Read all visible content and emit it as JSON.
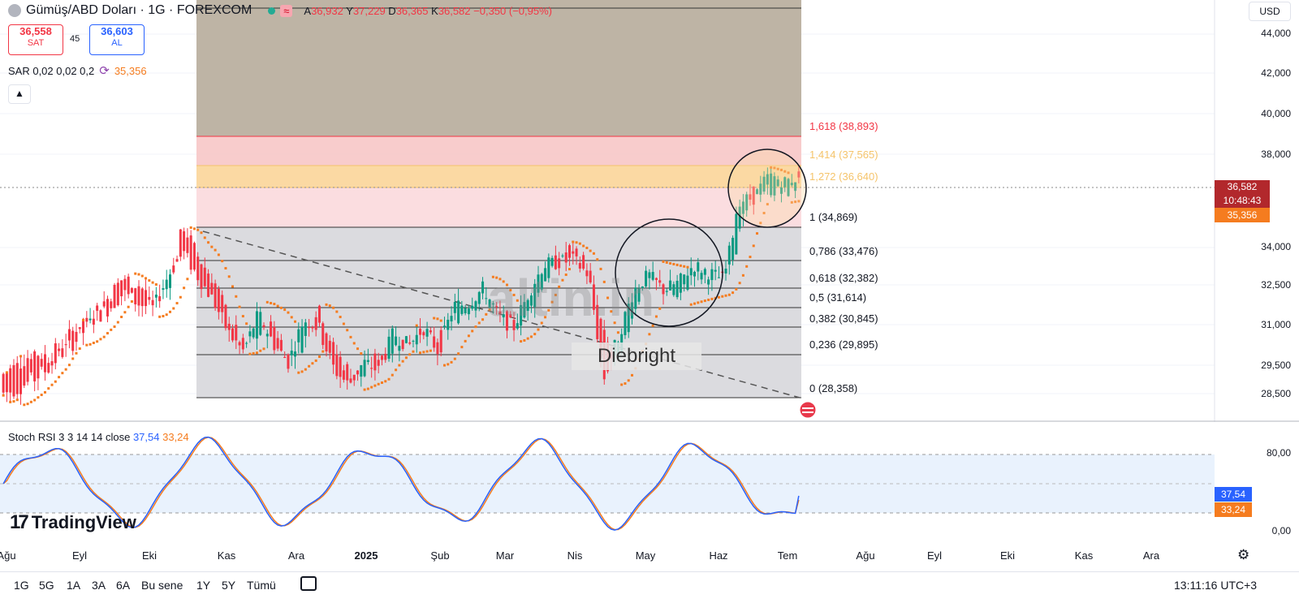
{
  "header": {
    "symbol_title": "Gümüş/ABD Doları · 1G · FOREXCOM",
    "wave_badge": "≈",
    "ohlc": {
      "o_label": "A",
      "o": "36,932",
      "h_label": "Y",
      "h": "37,229",
      "l_label": "D",
      "l": "36,365",
      "c_label": "K",
      "c": "36,582",
      "change": "−0,350 (−0,95%)"
    }
  },
  "trade": {
    "sell_price": "36,558",
    "sell_label": "SAT",
    "spread": "45",
    "buy_price": "36,603",
    "buy_label": "AL"
  },
  "sar": {
    "label": "SAR 0,02 0,02 0,2",
    "value": "35,356"
  },
  "currency": "USD",
  "y_axis": [
    "44,000",
    "42,000",
    "40,000",
    "38,000",
    "34,000",
    "32,500",
    "31,000",
    "29,500",
    "28,500"
  ],
  "fib_levels": [
    {
      "label": "1,618 (38,893)",
      "color": "#f23645"
    },
    {
      "label": "1,414 (37,565)",
      "color": "#f5c46b"
    },
    {
      "label": "1,272 (36,640)",
      "color": "#f5c46b"
    },
    {
      "label": "1 (34,869)",
      "color": "#131722"
    },
    {
      "label": "0,786 (33,476)",
      "color": "#131722"
    },
    {
      "label": "0,618 (32,382)",
      "color": "#131722"
    },
    {
      "label": "0,5 (31,614)",
      "color": "#131722"
    },
    {
      "label": "0,382 (30,845)",
      "color": "#131722"
    },
    {
      "label": "0,236 (29,895)",
      "color": "#131722"
    },
    {
      "label": "0 (28,358)",
      "color": "#131722"
    }
  ],
  "price_tags": {
    "last": "36,582",
    "countdown": "10:48:43",
    "last_color": "#b2282c",
    "sar": "35,356",
    "sar_color": "#f57c1f"
  },
  "rsi": {
    "label": "Stoch RSI 3 3 14 14 close",
    "k": "37,54",
    "d": "33,24",
    "k_color": "#2962ff",
    "d_color": "#f57c1f",
    "axis": [
      "80,00",
      "0,00"
    ]
  },
  "x_axis": [
    "Ağu",
    "Eyl",
    "Eki",
    "Kas",
    "Ara",
    "2025",
    "Şub",
    "Mar",
    "Nis",
    "May",
    "Haz",
    "Tem",
    "Ağu",
    "Eyl",
    "Eki",
    "Kas",
    "Ara"
  ],
  "timeframes": [
    "1G",
    "5G",
    "1A",
    "3A",
    "6A",
    "Bu sene",
    "1Y",
    "5Y",
    "Tümü"
  ],
  "clock": "13:11:16 UTC+3",
  "watermarks": {
    "brand": "altin.in",
    "author": "Diebright",
    "logo": "TradingView"
  },
  "chart_data": {
    "type": "candlestick",
    "title": "Gümüş/ABD Doları · 1G · FOREXCOM",
    "ylim": [
      28.0,
      44.5
    ],
    "y_ticks": [
      44.0,
      42.0,
      40.0,
      38.0,
      34.0,
      32.5,
      31.0,
      29.5,
      28.5
    ],
    "close_path": [
      [
        29.2,
        28.5
      ],
      [
        29.5,
        28.7
      ],
      [
        30.0,
        29.0
      ],
      [
        29.8,
        29.4
      ],
      [
        30.3,
        30.0
      ],
      [
        31.0,
        30.5
      ],
      [
        31.5,
        31.2
      ],
      [
        32.0,
        31.6
      ],
      [
        32.8,
        32.2
      ],
      [
        32.5,
        31.8
      ],
      [
        31.9,
        31.6
      ],
      [
        32.4,
        32.9
      ],
      [
        34.7,
        33.8
      ],
      [
        33.6,
        32.8
      ],
      [
        32.7,
        31.9
      ],
      [
        31.3,
        30.7
      ],
      [
        30.2,
        30.0
      ],
      [
        30.6,
        31.4
      ],
      [
        31.0,
        30.3
      ],
      [
        29.8,
        29.6
      ],
      [
        30.3,
        31.2
      ],
      [
        31.8,
        30.9
      ],
      [
        30.1,
        29.4
      ],
      [
        29.3,
        28.8
      ],
      [
        29.1,
        29.6
      ],
      [
        29.9,
        29.3
      ],
      [
        30.1,
        30.7
      ],
      [
        30.5,
        30.2
      ],
      [
        30.6,
        30.9
      ],
      [
        30.4,
        30.0
      ],
      [
        31.2,
        31.7
      ],
      [
        31.6,
        31.8
      ],
      [
        32.0,
        32.4
      ],
      [
        31.5,
        31.3
      ],
      [
        31.0,
        30.9
      ],
      [
        31.4,
        32.2
      ],
      [
        32.6,
        33.3
      ],
      [
        33.6,
        33.4
      ],
      [
        34.0,
        33.5
      ],
      [
        33.2,
        32.9
      ],
      [
        30.6,
        29.0
      ],
      [
        29.4,
        30.6
      ],
      [
        31.6,
        32.3
      ],
      [
        32.8,
        32.9
      ],
      [
        32.5,
        32.3
      ],
      [
        32.0,
        32.6
      ],
      [
        32.9,
        33.3
      ],
      [
        32.6,
        33.0
      ],
      [
        33.1,
        32.7
      ],
      [
        34.2,
        35.6
      ],
      [
        36.0,
        35.7
      ],
      [
        36.1,
        36.7
      ],
      [
        35.9,
        36.4
      ],
      [
        36.2,
        36.6
      ]
    ],
    "sar_value": 35.356,
    "last_price": 36.582,
    "stoch_rsi_last": {
      "k": 37.54,
      "d": 33.24
    },
    "stoch_rsi_levels": [
      80,
      20
    ]
  }
}
